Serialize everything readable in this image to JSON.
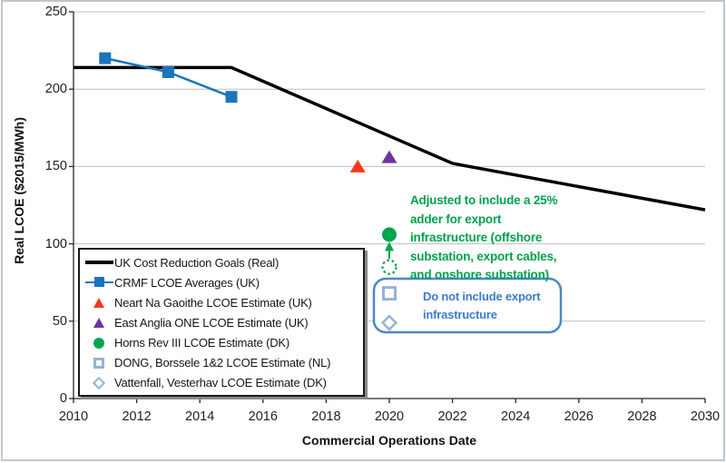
{
  "chart_data": {
    "type": "line",
    "grid": "horizontal",
    "x_axis": {
      "label": "Commercial Operations Date",
      "min": 2010,
      "max": 2030,
      "tick_step": 2,
      "ticks": [
        2010,
        2012,
        2014,
        2016,
        2018,
        2020,
        2022,
        2024,
        2026,
        2028,
        2030
      ]
    },
    "y_axis": {
      "label": "Real LCOE ($2015/MWh)",
      "min": 0,
      "max": 250,
      "tick_step": 50,
      "ticks": [
        0,
        50,
        100,
        150,
        200,
        250
      ]
    },
    "legend_position": "inside-bottom-left",
    "series": [
      {
        "name": "UK Cost Reduction Goals (Real)",
        "type": "line",
        "marker": "none",
        "color": "#000000",
        "line_width": 3.5,
        "points": [
          [
            2010,
            214
          ],
          [
            2015,
            214
          ],
          [
            2022,
            152
          ],
          [
            2030,
            122
          ]
        ]
      },
      {
        "name": "CRMF LCOE Averages (UK)",
        "type": "line",
        "marker": "square",
        "color": "#1b74be",
        "line_width": 2.5,
        "points": [
          [
            2011,
            220
          ],
          [
            2013,
            211
          ],
          [
            2015,
            195
          ]
        ]
      },
      {
        "name": "Neart Na Gaoithe LCOE Estimate (UK)",
        "type": "scatter",
        "marker": "triangle",
        "color": "#f5381c",
        "points": [
          [
            2019,
            150
          ]
        ]
      },
      {
        "name": "East Anglia ONE LCOE Estimate (UK)",
        "type": "scatter",
        "marker": "triangle",
        "color": "#7030a0",
        "points": [
          [
            2020,
            156
          ]
        ]
      },
      {
        "name": "Horns Rev III LCOE Estimate (DK)",
        "type": "scatter",
        "marker": "circle",
        "color": "#00a550",
        "points": [
          [
            2020,
            106
          ]
        ],
        "note": "adjusted to include a 25% export infrastructure adder"
      },
      {
        "name": "Horns Rev III LCOE Estimate (DK) (unadjusted)",
        "type": "scatter",
        "marker": "dashed-circle",
        "color": "#00a550",
        "in_legend": false,
        "points": [
          [
            2020,
            85
          ]
        ]
      },
      {
        "name": "DONG, Borssele 1&2 LCOE Estimate (NL)",
        "type": "scatter",
        "marker": "hollow-square",
        "color": "#95b3d7",
        "points": [
          [
            2020,
            68
          ]
        ]
      },
      {
        "name": "Vattenfall, Vesterhav LCOE Estimate (DK)",
        "type": "scatter",
        "marker": "hollow-diamond",
        "color": "#95b3d7",
        "points": [
          [
            2020,
            49
          ]
        ]
      }
    ],
    "annotations": {
      "green_note": {
        "color": "#00a04e",
        "lines": [
          "Adjusted to include a 25%",
          "adder for export",
          "infrastructure (offshore",
          "substation, export cables,",
          "and onshore substation)"
        ],
        "arrow": "from unadjusted dashed marker up to adjusted filled marker"
      },
      "blue_note": {
        "color": "#3d7cc9",
        "box_border_color": "#4e86cd",
        "lines": [
          "Do not include export",
          "infrastructure"
        ]
      }
    }
  }
}
